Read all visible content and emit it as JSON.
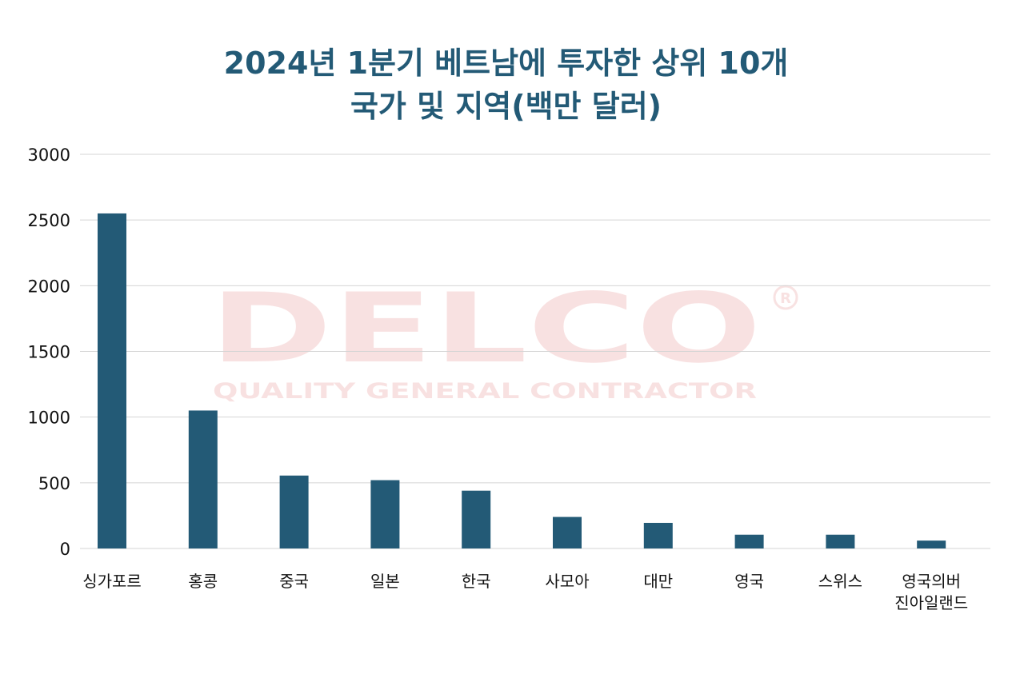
{
  "chart_data": {
    "type": "bar",
    "title_lines": [
      "2024년 1분기 베트남에 투자한 상위 10개",
      "국가 및 지역(백만 달러)"
    ],
    "xlabel": "",
    "ylabel": "",
    "ylim": [
      0,
      3000
    ],
    "yticks": [
      "0",
      "500",
      "1000",
      "1500",
      "2000",
      "2500",
      "3000"
    ],
    "categories": [
      "싱가포르",
      "홍콩",
      "중국",
      "일본",
      "한국",
      "사모아",
      "대만",
      "영국",
      "스위스",
      "영국의버\n진아일랜드"
    ],
    "values": [
      2550,
      1050,
      555,
      520,
      440,
      240,
      195,
      105,
      105,
      60
    ],
    "bar_color": "#235a76",
    "grid": true,
    "legend": "none"
  },
  "watermark": {
    "brand": "DELCO",
    "tagline": "QUALITY GENERAL CONTRACTOR",
    "mark": "®",
    "color": "#f3caca"
  }
}
